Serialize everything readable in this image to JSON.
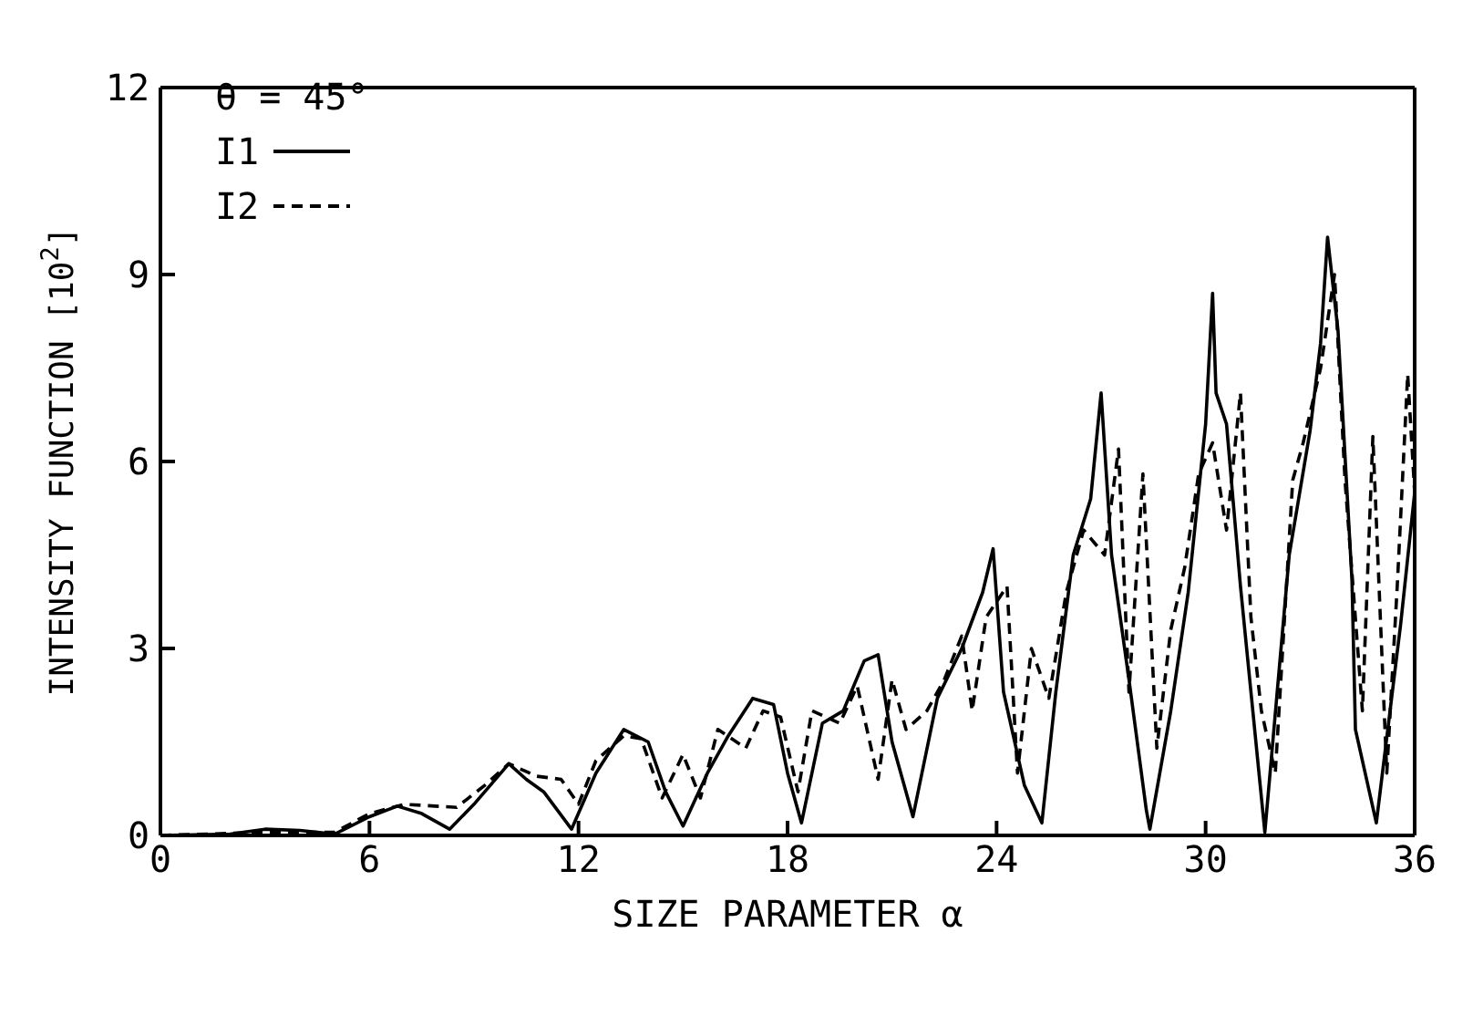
{
  "chart_data": {
    "type": "line",
    "xlabel": "SIZE PARAMETER α",
    "ylabel": "INTENSITY FUNCTION [10$^{2}$]",
    "legend_title": "θ = 45°",
    "legend": "top left",
    "grid": false,
    "marker": "none",
    "xlim": [
      0,
      36
    ],
    "xticks": [
      0,
      6,
      12,
      18,
      24,
      30,
      36
    ],
    "ylim": [
      0,
      12
    ],
    "yticks": [
      0,
      3,
      6,
      9,
      12
    ],
    "series": [
      {
        "name": "I1",
        "color": "#000000",
        "line_style": "solid",
        "x": [
          0,
          2,
          3,
          4,
          5,
          6,
          6.8,
          7.5,
          8.3,
          9,
          10,
          10.5,
          11,
          11.8,
          12.5,
          13.3,
          14,
          14.5,
          15,
          15.7,
          16.3,
          17,
          17.6,
          18,
          18.4,
          19,
          19.6,
          20.2,
          20.6,
          21,
          21.6,
          22.3,
          23,
          23.6,
          23.9,
          24.2,
          24.8,
          25.3,
          25.7,
          26.2,
          26.7,
          27,
          27.3,
          27.8,
          28.3,
          28.4,
          29,
          29.5,
          30,
          30.2,
          30.3,
          30.6,
          31,
          31.7,
          32.4,
          33,
          33.3,
          33.5,
          33.8,
          34.2,
          34.3,
          34.9,
          35.6,
          36
        ],
        "values": [
          0,
          0.02,
          0.1,
          0.08,
          0.02,
          0.3,
          0.47,
          0.35,
          0.1,
          0.5,
          1.15,
          0.9,
          0.7,
          0.1,
          1.0,
          1.7,
          1.5,
          0.7,
          0.15,
          1.0,
          1.6,
          2.2,
          2.1,
          1.0,
          0.2,
          1.8,
          2.0,
          2.8,
          2.9,
          1.5,
          0.3,
          2.2,
          3.0,
          3.9,
          4.6,
          2.3,
          0.8,
          0.2,
          2.3,
          4.5,
          5.4,
          7.1,
          4.5,
          2.5,
          0.4,
          0.1,
          2.0,
          3.9,
          6.6,
          8.7,
          7.1,
          6.6,
          4.0,
          0.05,
          4.5,
          6.5,
          7.9,
          9.6,
          8.1,
          4.1,
          1.7,
          0.2,
          3.4,
          5.5
        ]
      },
      {
        "name": "I2",
        "color": "#000000",
        "line_style": "dashed",
        "x": [
          0,
          3,
          5,
          6,
          7,
          8.5,
          9.3,
          10,
          10.8,
          11.5,
          12,
          12.5,
          13.3,
          13.8,
          14.4,
          15,
          15.5,
          16,
          16.8,
          17.3,
          17.8,
          18.3,
          18.7,
          19.5,
          20,
          20.6,
          21,
          21.4,
          22,
          22.5,
          23,
          23.3,
          23.7,
          24.3,
          24.6,
          25,
          25.5,
          26,
          26.5,
          27.1,
          27.5,
          27.8,
          28.2,
          28.6,
          29,
          29.4,
          29.8,
          30.2,
          30.6,
          31,
          31.3,
          31.6,
          32,
          32.5,
          32.8,
          33.3,
          33.7,
          34,
          34.5,
          34.8,
          35.2,
          35.5,
          35.8,
          36
        ],
        "values": [
          0,
          0.05,
          0.05,
          0.35,
          0.5,
          0.45,
          0.8,
          1.15,
          0.95,
          0.9,
          0.5,
          1.2,
          1.6,
          1.55,
          0.6,
          1.3,
          0.6,
          1.7,
          1.4,
          2.0,
          1.9,
          0.7,
          2.0,
          1.8,
          2.4,
          0.9,
          2.5,
          1.7,
          2.0,
          2.5,
          3.2,
          2.0,
          3.5,
          4.0,
          1.0,
          3.0,
          2.2,
          3.9,
          4.9,
          4.5,
          6.2,
          2.3,
          5.8,
          1.4,
          3.3,
          4.3,
          5.8,
          6.3,
          4.9,
          7.1,
          3.5,
          2.0,
          1.0,
          5.7,
          6.3,
          7.5,
          9.0,
          5.7,
          2.0,
          6.4,
          1.0,
          4.0,
          7.4,
          5.5
        ]
      }
    ]
  }
}
